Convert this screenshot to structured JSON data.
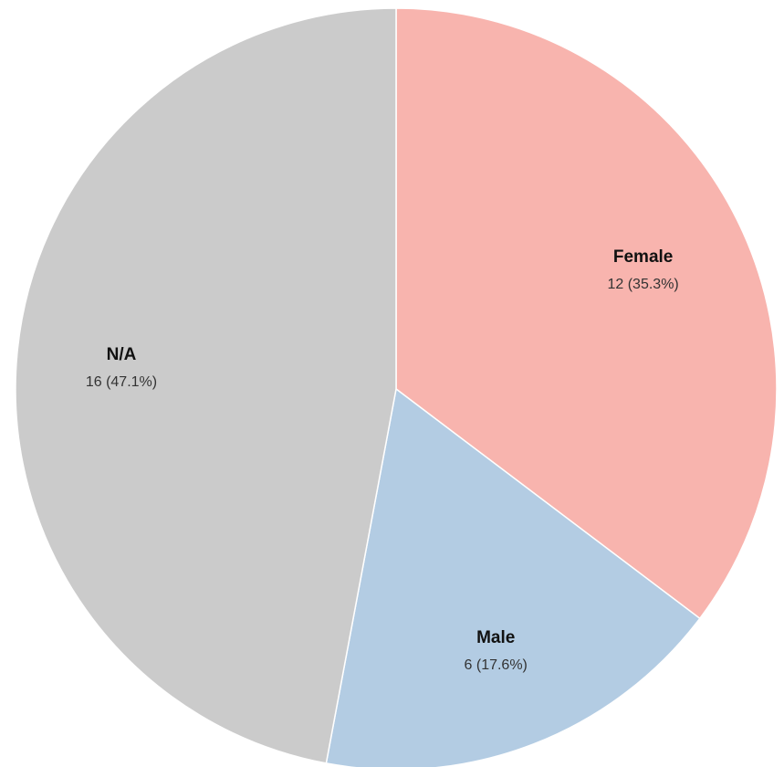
{
  "chart_data": {
    "type": "pie",
    "start_angle_deg": 0,
    "direction": "clockwise",
    "slices": [
      {
        "name": "Female",
        "value": 12,
        "value_label": "12 (35.3%)",
        "color": "#f8b4ae"
      },
      {
        "name": "Male",
        "value": 6,
        "value_label": "6 (17.6%)",
        "color": "#b3cce3"
      },
      {
        "name": "N/A",
        "value": 16,
        "value_label": "16 (47.1%)",
        "color": "#cbcbcb"
      }
    ]
  }
}
